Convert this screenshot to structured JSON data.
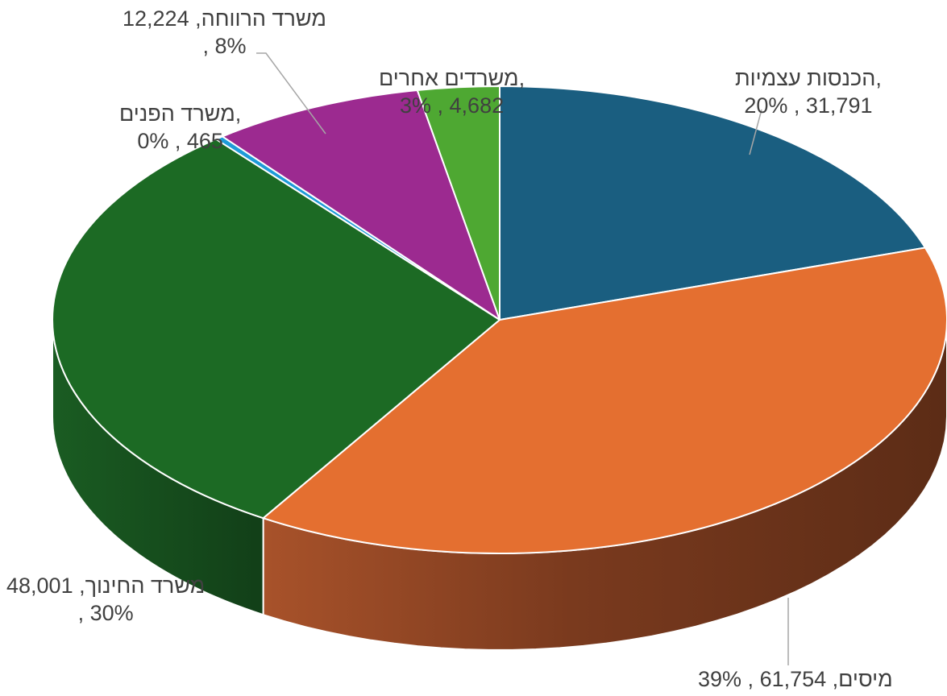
{
  "chart_data": {
    "type": "pie",
    "style": "3d",
    "legend": "none",
    "categories": [
      "הכנסות עצמיות",
      "מיסים",
      "משרד החינוך",
      "משרד הפנים",
      "משרד הרווחה",
      "משרדים אחרים"
    ],
    "values": [
      31791,
      61754,
      48001,
      465,
      12224,
      4682
    ],
    "percents": [
      "20%",
      "39%",
      "30%",
      "0%",
      "8%",
      "3%"
    ],
    "colors": [
      "#1a5e80",
      "#e46f30",
      "#1c6a24",
      "#1e9bd8",
      "#9c2a90",
      "#4ea832"
    ],
    "labels": [
      {
        "line1": "הכנסות עצמיות,",
        "line2": "20% , 31,791"
      },
      {
        "line1": "מיסים,  61,754 , 39%",
        "line2": ""
      },
      {
        "line1": "משרד החינוך,  48,001",
        "line2": ", 30%"
      },
      {
        "line1": "משרד הפנים,",
        "line2": "0% , 465"
      },
      {
        "line1": "משרד הרווחה,  12,224",
        "line2": ", 8%"
      },
      {
        "line1": "משרדים אחרים,",
        "line2": "3% , 4,682"
      }
    ]
  }
}
